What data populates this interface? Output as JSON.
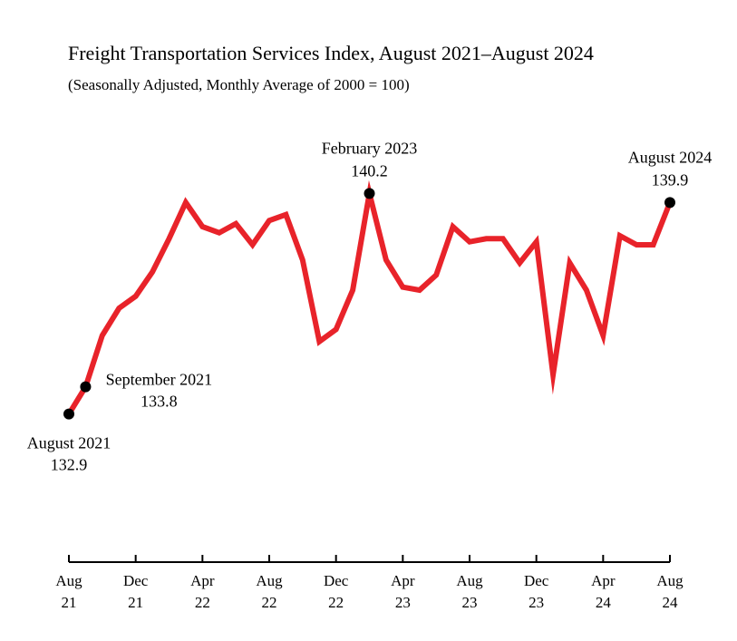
{
  "chart_data": {
    "type": "line",
    "title": "Freight Transportation Services Index, August 2021–August 2024",
    "subtitle": "(Seasonally Adjusted, Monthly Average of 2000 = 100)",
    "xlabel": "",
    "ylabel": "",
    "grid": false,
    "legend": "none",
    "y_range": [
      128.0,
      141.8
    ],
    "x": [
      "Aug 2021",
      "Sep 2021",
      "Oct 2021",
      "Nov 2021",
      "Dec 2021",
      "Jan 2022",
      "Feb 2022",
      "Mar 2022",
      "Apr 2022",
      "May 2022",
      "Jun 2022",
      "Jul 2022",
      "Aug 2022",
      "Sep 2022",
      "Oct 2022",
      "Nov 2022",
      "Dec 2022",
      "Jan 2023",
      "Feb 2023",
      "Mar 2023",
      "Apr 2023",
      "May 2023",
      "Jun 2023",
      "Jul 2023",
      "Aug 2023",
      "Sep 2023",
      "Oct 2023",
      "Nov 2023",
      "Dec 2023",
      "Jan 2024",
      "Feb 2024",
      "Mar 2024",
      "Apr 2024",
      "May 2024",
      "Jun 2024",
      "Jul 2024",
      "Aug 2024"
    ],
    "series": [
      {
        "color": "#e8232a",
        "values": [
          132.9,
          133.8,
          135.5,
          136.4,
          136.8,
          137.6,
          138.7,
          139.9,
          139.1,
          138.9,
          139.2,
          138.5,
          139.3,
          139.5,
          138.0,
          135.3,
          135.7,
          137.0,
          140.2,
          138.0,
          137.1,
          137.0,
          137.5,
          139.1,
          138.6,
          138.7,
          138.7,
          137.9,
          138.6,
          134.2,
          137.9,
          137.0,
          135.5,
          138.8,
          138.5,
          138.5,
          139.9
        ]
      }
    ],
    "x_ticks": [
      {
        "index": 0,
        "label_top": "Aug",
        "label_bottom": "21"
      },
      {
        "index": 4,
        "label_top": "Dec",
        "label_bottom": "21"
      },
      {
        "index": 8,
        "label_top": "Apr",
        "label_bottom": "22"
      },
      {
        "index": 12,
        "label_top": "Aug",
        "label_bottom": "22"
      },
      {
        "index": 16,
        "label_top": "Dec",
        "label_bottom": "22"
      },
      {
        "index": 20,
        "label_top": "Apr",
        "label_bottom": "23"
      },
      {
        "index": 24,
        "label_top": "Aug",
        "label_bottom": "23"
      },
      {
        "index": 28,
        "label_top": "Dec",
        "label_bottom": "23"
      },
      {
        "index": 32,
        "label_top": "Apr",
        "label_bottom": "24"
      },
      {
        "index": 36,
        "label_top": "Aug",
        "label_bottom": "24"
      }
    ],
    "annotations": [
      {
        "index": 0,
        "label": "August 2021",
        "value": "132.9",
        "placement": "below-left"
      },
      {
        "index": 1,
        "label": "September 2021",
        "value": "133.8",
        "placement": "right"
      },
      {
        "index": 18,
        "label": "February 2023",
        "value": "140.2",
        "placement": "above"
      },
      {
        "index": 36,
        "label": "August 2024",
        "value": "139.9",
        "placement": "above"
      }
    ]
  }
}
